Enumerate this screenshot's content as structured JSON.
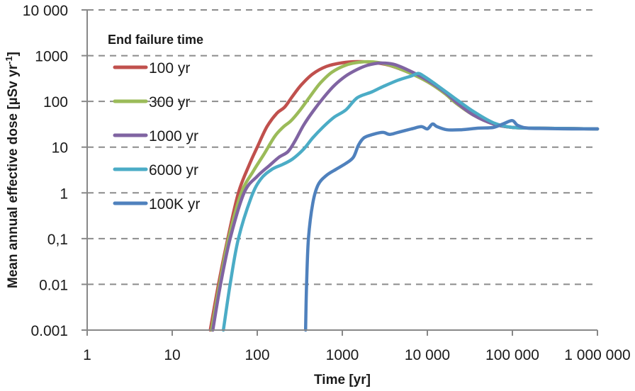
{
  "chart_data": {
    "type": "line",
    "title": "",
    "xlabel": "Time [yr]",
    "ylabel": "Mean annual effective dose [µSv yr-1]",
    "ylabel_main": "Mean annual effective dose [µSv yr",
    "ylabel_sup": "-1",
    "ylabel_end": "]",
    "x_scale": "log",
    "y_scale": "log",
    "xlim": [
      1,
      1000000
    ],
    "ylim": [
      0.001,
      10000
    ],
    "x_ticks": [
      1,
      10,
      100,
      1000,
      10000,
      100000,
      1000000
    ],
    "x_tick_labels": [
      "1",
      "10",
      "100",
      "1000",
      "10 000",
      "100 000",
      "1 000 000"
    ],
    "y_ticks": [
      0.001,
      0.01,
      0.1,
      1,
      10,
      100,
      1000,
      10000
    ],
    "y_tick_labels": [
      "0.001",
      "0.01",
      "0,1",
      "1",
      "10",
      "100",
      "1000",
      "10 000"
    ],
    "grid": "horizontal-dashed",
    "legend": {
      "title": "End failure time",
      "placement": "top-left"
    },
    "series": [
      {
        "name": "100 yr",
        "color": "#c0504d",
        "points": [
          [
            28,
            0.001
          ],
          [
            35,
            0.01
          ],
          [
            45,
            0.1
          ],
          [
            60,
            1
          ],
          [
            80,
            4
          ],
          [
            100,
            10
          ],
          [
            130,
            28
          ],
          [
            170,
            55
          ],
          [
            210,
            75
          ],
          [
            260,
            130
          ],
          [
            330,
            230
          ],
          [
            450,
            400
          ],
          [
            650,
            580
          ],
          [
            1000,
            700
          ],
          [
            1500,
            740
          ],
          [
            2200,
            720
          ],
          [
            3500,
            620
          ],
          [
            6000,
            430
          ],
          [
            10000,
            270
          ],
          [
            16000,
            150
          ],
          [
            22000,
            90
          ],
          [
            35000,
            50
          ],
          [
            60000,
            32
          ],
          [
            100000,
            27
          ],
          [
            200000,
            26
          ],
          [
            500000,
            25.5
          ],
          [
            1000000,
            25
          ]
        ]
      },
      {
        "name": "300 yr",
        "color": "#9bbb59",
        "points": [
          [
            29,
            0.001
          ],
          [
            36,
            0.01
          ],
          [
            46,
            0.1
          ],
          [
            65,
            1
          ],
          [
            90,
            3
          ],
          [
            120,
            7
          ],
          [
            160,
            17
          ],
          [
            200,
            27
          ],
          [
            250,
            38
          ],
          [
            320,
            65
          ],
          [
            420,
            130
          ],
          [
            550,
            250
          ],
          [
            750,
            430
          ],
          [
            1100,
            620
          ],
          [
            1600,
            720
          ],
          [
            2300,
            730
          ],
          [
            3500,
            630
          ],
          [
            6000,
            430
          ],
          [
            10000,
            270
          ],
          [
            16000,
            150
          ],
          [
            22000,
            90
          ],
          [
            35000,
            50
          ],
          [
            60000,
            32
          ],
          [
            100000,
            27
          ],
          [
            200000,
            26
          ],
          [
            500000,
            25.5
          ],
          [
            1000000,
            25
          ]
        ]
      },
      {
        "name": "1000 yr",
        "color": "#8064a2",
        "points": [
          [
            30,
            0.001
          ],
          [
            37,
            0.01
          ],
          [
            48,
            0.1
          ],
          [
            70,
            1
          ],
          [
            100,
            2.3
          ],
          [
            140,
            4
          ],
          [
            180,
            6
          ],
          [
            230,
            8
          ],
          [
            280,
            14
          ],
          [
            350,
            30
          ],
          [
            450,
            60
          ],
          [
            600,
            120
          ],
          [
            800,
            220
          ],
          [
            1100,
            360
          ],
          [
            1500,
            500
          ],
          [
            2000,
            620
          ],
          [
            2800,
            690
          ],
          [
            4000,
            650
          ],
          [
            6000,
            480
          ],
          [
            10000,
            290
          ],
          [
            16000,
            160
          ],
          [
            22000,
            95
          ],
          [
            35000,
            50
          ],
          [
            60000,
            32
          ],
          [
            100000,
            27
          ],
          [
            200000,
            26
          ],
          [
            500000,
            25.5
          ],
          [
            1000000,
            25
          ]
        ]
      },
      {
        "name": "6000 yr",
        "color": "#4bacc6",
        "points": [
          [
            40,
            0.001
          ],
          [
            48,
            0.01
          ],
          [
            60,
            0.1
          ],
          [
            85,
            0.8
          ],
          [
            110,
            2
          ],
          [
            150,
            3.3
          ],
          [
            200,
            4.2
          ],
          [
            260,
            5.5
          ],
          [
            350,
            9
          ],
          [
            450,
            16
          ],
          [
            600,
            28
          ],
          [
            800,
            45
          ],
          [
            1100,
            65
          ],
          [
            1500,
            120
          ],
          [
            2200,
            160
          ],
          [
            3000,
            210
          ],
          [
            4500,
            290
          ],
          [
            6500,
            360
          ],
          [
            7800,
            410
          ],
          [
            9000,
            360
          ],
          [
            12000,
            250
          ],
          [
            16000,
            170
          ],
          [
            22000,
            110
          ],
          [
            35000,
            60
          ],
          [
            60000,
            34
          ],
          [
            100000,
            27
          ],
          [
            200000,
            26
          ],
          [
            500000,
            25.5
          ],
          [
            1000000,
            25
          ]
        ]
      },
      {
        "name": "100K yr",
        "color": "#4f81bd",
        "points": [
          [
            370,
            0.001
          ],
          [
            380,
            0.01
          ],
          [
            400,
            0.1
          ],
          [
            450,
            0.6
          ],
          [
            520,
            1.5
          ],
          [
            650,
            2.4
          ],
          [
            850,
            3.3
          ],
          [
            1100,
            4.4
          ],
          [
            1350,
            6
          ],
          [
            1550,
            11
          ],
          [
            1800,
            16
          ],
          [
            2300,
            19
          ],
          [
            3000,
            21
          ],
          [
            3600,
            19
          ],
          [
            4500,
            21
          ],
          [
            6500,
            25
          ],
          [
            8500,
            28
          ],
          [
            10000,
            25
          ],
          [
            11500,
            32
          ],
          [
            13000,
            28
          ],
          [
            17000,
            24
          ],
          [
            25000,
            24
          ],
          [
            40000,
            26
          ],
          [
            60000,
            27
          ],
          [
            80000,
            33
          ],
          [
            100000,
            38
          ],
          [
            115000,
            30
          ],
          [
            150000,
            26
          ],
          [
            250000,
            25.5
          ],
          [
            500000,
            25
          ],
          [
            1000000,
            25
          ]
        ]
      }
    ]
  }
}
